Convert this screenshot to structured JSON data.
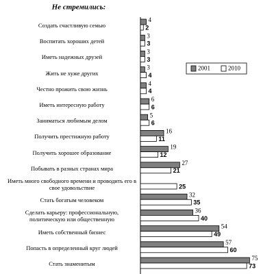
{
  "chart_data": {
    "type": "bar",
    "orientation": "horizontal",
    "title": "Не стремились:",
    "categories": [
      "Создать счастливую семью",
      "Воспитать хороших детей",
      "Иметь надежных друзей",
      "Жить не хуже других",
      "Честно прожить свою жизнь",
      "Иметь интересную работу",
      "Заниматься любимым делом",
      "Получить престижную работу",
      "Получить хорошее образование",
      "Побывать в разных странах мира",
      "Иметь много свободного времени и проводить его в\nсвое удовольствие",
      "Стать богатым человеком",
      "Сделать карьеру: профессиональную,\nполитическую или общественную",
      "Иметь собственный бизнес",
      "Попасть в определенный круг людей",
      "Стать знаменитым"
    ],
    "series": [
      {
        "name": "2001",
        "color": "#7f7f7f",
        "values": [
          4,
          3,
          3,
          3,
          4,
          6,
          5,
          16,
          19,
          27,
          null,
          32,
          36,
          54,
          57,
          75
        ]
      },
      {
        "name": "2010",
        "color": "#ffffff",
        "values": [
          2,
          3,
          3,
          4,
          4,
          6,
          6,
          11,
          12,
          21,
          25,
          35,
          40,
          49,
          60,
          73
        ]
      }
    ],
    "xlim": [
      0,
      80
    ],
    "legend": "right"
  }
}
